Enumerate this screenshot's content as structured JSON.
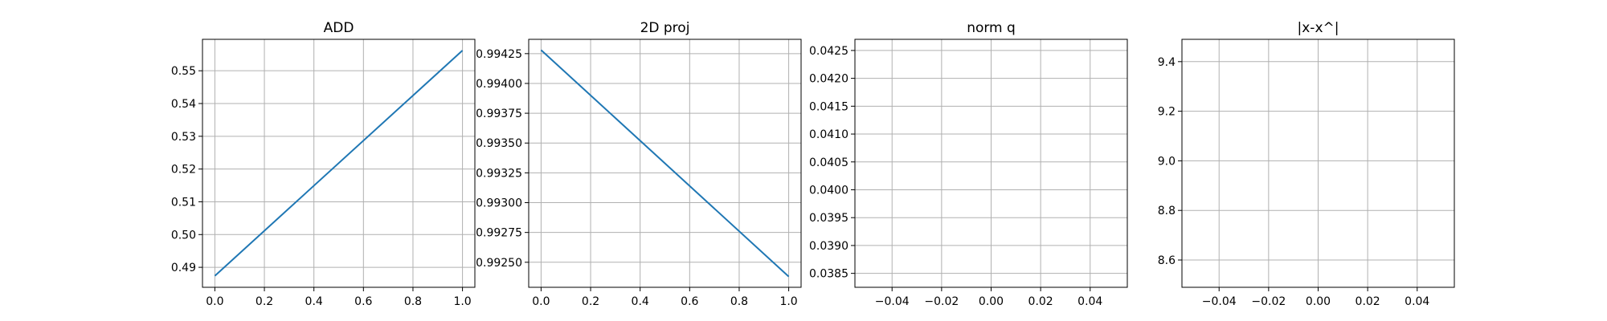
{
  "chart_data": [
    {
      "type": "line",
      "title": "ADD",
      "xlabel": "",
      "ylabel": "",
      "xlim": [
        -0.05,
        1.05
      ],
      "ylim": [
        0.4839,
        0.5596
      ],
      "xticks": [
        0.0,
        0.2,
        0.4,
        0.6,
        0.8,
        1.0
      ],
      "xtick_labels": [
        "0.0",
        "0.2",
        "0.4",
        "0.6",
        "0.8",
        "1.0"
      ],
      "yticks": [
        0.49,
        0.5,
        0.51,
        0.52,
        0.53,
        0.54,
        0.55
      ],
      "ytick_labels": [
        "0.49",
        "0.50",
        "0.51",
        "0.52",
        "0.53",
        "0.54",
        "0.55"
      ],
      "grid": true,
      "series": [
        {
          "color": "#1f77b4",
          "x": [
            0.0,
            1.0
          ],
          "y": [
            0.4874,
            0.5562
          ]
        }
      ]
    },
    {
      "type": "line",
      "title": "2D proj",
      "xlabel": "",
      "ylabel": "",
      "xlim": [
        -0.05,
        1.05
      ],
      "ylim": [
        0.99229,
        0.99437
      ],
      "xticks": [
        0.0,
        0.2,
        0.4,
        0.6,
        0.8,
        1.0
      ],
      "xtick_labels": [
        "0.0",
        "0.2",
        "0.4",
        "0.6",
        "0.8",
        "1.0"
      ],
      "yticks": [
        0.9925,
        0.99275,
        0.993,
        0.99325,
        0.9935,
        0.99375,
        0.994,
        0.99425
      ],
      "ytick_labels": [
        "0.99250",
        "0.99275",
        "0.99300",
        "0.99325",
        "0.99350",
        "0.99375",
        "0.99400",
        "0.99425"
      ],
      "grid": true,
      "series": [
        {
          "color": "#1f77b4",
          "x": [
            0.0,
            1.0
          ],
          "y": [
            0.99428,
            0.99238
          ]
        }
      ]
    },
    {
      "type": "line",
      "title": "norm q",
      "xlabel": "",
      "ylabel": "",
      "xlim": [
        -0.055,
        0.055
      ],
      "ylim": [
        0.03825,
        0.0427
      ],
      "xticks": [
        -0.04,
        -0.02,
        0.0,
        0.02,
        0.04
      ],
      "xtick_labels": [
        "−0.04",
        "−0.02",
        "0.00",
        "0.02",
        "0.04"
      ],
      "yticks": [
        0.0385,
        0.039,
        0.0395,
        0.04,
        0.0405,
        0.041,
        0.0415,
        0.042,
        0.0425
      ],
      "ytick_labels": [
        "0.0385",
        "0.0390",
        "0.0395",
        "0.0400",
        "0.0405",
        "0.0410",
        "0.0415",
        "0.0420",
        "0.0425"
      ],
      "grid": true,
      "series": []
    },
    {
      "type": "line",
      "title": "|x-x^|",
      "xlabel": "",
      "ylabel": "",
      "xlim": [
        -0.055,
        0.055
      ],
      "ylim": [
        8.49,
        9.49
      ],
      "xticks": [
        -0.04,
        -0.02,
        0.0,
        0.02,
        0.04
      ],
      "xtick_labels": [
        "−0.04",
        "−0.02",
        "0.00",
        "0.02",
        "0.04"
      ],
      "yticks": [
        8.6,
        8.8,
        9.0,
        9.2,
        9.4
      ],
      "ytick_labels": [
        "8.6",
        "8.8",
        "9.0",
        "9.2",
        "9.4"
      ],
      "grid": true,
      "series": []
    }
  ]
}
